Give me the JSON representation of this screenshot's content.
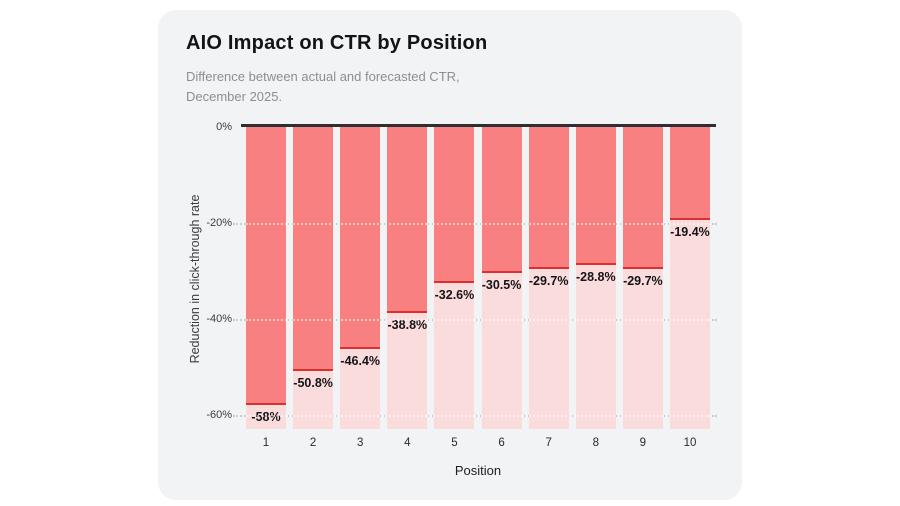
{
  "page": {
    "background": "#ffffff",
    "card_background": "#F2F3F5"
  },
  "card": {
    "title": "AIO Impact on CTR by Position",
    "subtitle_line1": "Difference between actual and forecasted CTR,",
    "subtitle_line2": "December 2025."
  },
  "chart_data": {
    "type": "bar",
    "title": "AIO Impact on CTR by Position",
    "subtitle": "Difference between actual and forecasted CTR, December 2025.",
    "categories": [
      "1",
      "2",
      "3",
      "4",
      "5",
      "6",
      "7",
      "8",
      "9",
      "10"
    ],
    "values": [
      -58,
      -50.8,
      -46.4,
      -38.8,
      -32.6,
      -30.5,
      -29.7,
      -28.8,
      -29.7,
      -19.4
    ],
    "value_labels": [
      "-58%",
      "-50.8%",
      "-46.4%",
      "-38.8%",
      "-32.6%",
      "-30.5%",
      "-29.7%",
      "-28.8%",
      "-29.7%",
      "-19.4%"
    ],
    "xlabel": "Position",
    "ylabel": "Reduction in click-through rate",
    "yticks": [
      {
        "value": 0,
        "label": "0%"
      },
      {
        "value": -20,
        "label": "-20%"
      },
      {
        "value": -40,
        "label": "-40%"
      },
      {
        "value": -60,
        "label": "-60%"
      }
    ],
    "ylim": [
      0,
      -63
    ],
    "grid": "dotted horizontal at -20, -40, -60",
    "legend": "none",
    "colors": {
      "bar_fill": "#F98080",
      "bar_track": "#FBDCDC",
      "value_line": "#DC2F2F",
      "zero_axis_line": "#2E2E35",
      "label_text": "#141418"
    }
  }
}
